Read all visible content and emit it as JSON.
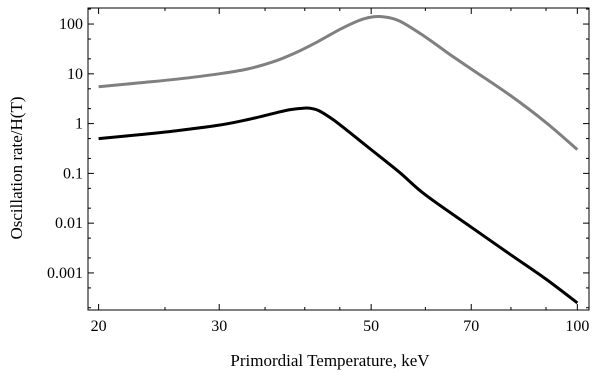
{
  "chart_data": {
    "type": "line",
    "title": "",
    "xlabel": "Primordial Temperature, keV",
    "ylabel": "Oscillation rate/H(T)",
    "x_scale": "log",
    "y_scale": "log",
    "xlim": [
      19.3,
      104
    ],
    "ylim": [
      0.00018,
      210
    ],
    "x_ticks": [
      {
        "value": 20,
        "label": "20"
      },
      {
        "value": 30,
        "label": "30"
      },
      {
        "value": 50,
        "label": "50"
      },
      {
        "value": 70,
        "label": "70"
      },
      {
        "value": 100,
        "label": "100"
      }
    ],
    "x_minor_ticks": [
      25,
      35,
      40,
      45,
      60,
      80,
      90
    ],
    "y_ticks": [
      {
        "value": 0.001,
        "label": "0.001"
      },
      {
        "value": 0.01,
        "label": "0.01"
      },
      {
        "value": 0.1,
        "label": "0.1"
      },
      {
        "value": 1,
        "label": "1"
      },
      {
        "value": 10,
        "label": "10"
      },
      {
        "value": 100,
        "label": "100"
      }
    ],
    "y_minor_ticks": [
      0.0002,
      0.0005,
      0.002,
      0.005,
      0.02,
      0.05,
      0.2,
      0.5,
      2,
      5,
      20,
      50,
      200
    ],
    "grid": false,
    "legend": "none",
    "series": [
      {
        "color": "#808080",
        "x": [
          20,
          23,
          26,
          30,
          33,
          36,
          39,
          42,
          45,
          48,
          50,
          52,
          55,
          60,
          65,
          70,
          80,
          90,
          100
        ],
        "y": [
          5.5,
          6.6,
          7.8,
          10.0,
          12.5,
          17.5,
          27.5,
          46,
          78,
          118,
          138,
          140,
          115,
          55,
          25,
          12.5,
          3.6,
          1.05,
          0.3
        ]
      },
      {
        "color": "#000000",
        "x": [
          20,
          23,
          26,
          30,
          33,
          36,
          38,
          40,
          41,
          42,
          44,
          46,
          48,
          50,
          55,
          60,
          70,
          80,
          90,
          100
        ],
        "y": [
          0.5,
          0.6,
          0.72,
          0.93,
          1.2,
          1.6,
          1.9,
          2.05,
          2.0,
          1.8,
          1.2,
          0.75,
          0.47,
          0.3,
          0.105,
          0.037,
          0.0083,
          0.0023,
          0.00075,
          0.00025
        ]
      }
    ]
  }
}
